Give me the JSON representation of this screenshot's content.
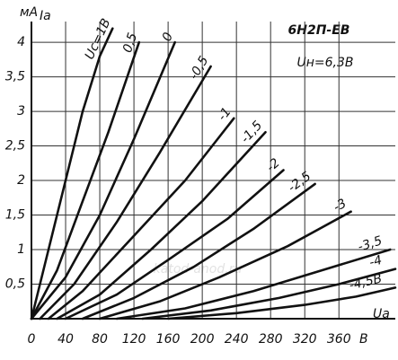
{
  "chart_data": {
    "type": "line",
    "title": "6Н2П-ЕВ",
    "subtitle": "Uн=6,3В",
    "y_unit": "мА",
    "y_label": "Ia",
    "x_label": "Ua",
    "x_unit": "В",
    "watermark": "katod-anod.ru",
    "xlim": [
      0,
      426
    ],
    "ylim": [
      0,
      4.3
    ],
    "xticks": [
      0,
      40,
      80,
      120,
      160,
      200,
      240,
      280,
      320,
      360
    ],
    "yticks": [
      {
        "value": 0.5,
        "label": "0,5"
      },
      1,
      {
        "value": 1.5,
        "label": "1,5"
      },
      2,
      {
        "value": 2.5,
        "label": "2,5"
      },
      3,
      {
        "value": 3.5,
        "label": "3,5"
      },
      4
    ],
    "grid": true,
    "series": [
      {
        "name": "Uc=1В",
        "color": "#111111",
        "x": [
          0,
          20,
          40,
          60,
          80,
          95
        ],
        "values": [
          0,
          1.0,
          2.0,
          3.0,
          3.8,
          4.2
        ]
      },
      {
        "name": "0,5",
        "color": "#111111",
        "x": [
          0,
          30,
          60,
          90,
          126
        ],
        "values": [
          0,
          0.7,
          1.7,
          2.7,
          4.0
        ]
      },
      {
        "name": "0",
        "color": "#111111",
        "x": [
          0,
          40,
          80,
          120,
          168
        ],
        "values": [
          0,
          0.6,
          1.5,
          2.6,
          4.0
        ]
      },
      {
        "name": "-0,5",
        "color": "#111111",
        "x": [
          10,
          50,
          100,
          150,
          210
        ],
        "values": [
          0,
          0.5,
          1.4,
          2.4,
          3.65
        ]
      },
      {
        "name": "-1",
        "color": "#111111",
        "x": [
          20,
          60,
          120,
          180,
          237
        ],
        "values": [
          0,
          0.4,
          1.2,
          2.0,
          2.9
        ]
      },
      {
        "name": "-1,5",
        "color": "#111111",
        "x": [
          30,
          80,
          140,
          200,
          274
        ],
        "values": [
          0,
          0.35,
          1.0,
          1.7,
          2.7
        ]
      },
      {
        "name": "-2",
        "color": "#111111",
        "x": [
          40,
          100,
          160,
          230,
          295
        ],
        "values": [
          0,
          0.35,
          0.85,
          1.45,
          2.15
        ]
      },
      {
        "name": "-2,5",
        "color": "#111111",
        "x": [
          60,
          120,
          190,
          260,
          332
        ],
        "values": [
          0,
          0.3,
          0.75,
          1.3,
          1.95
        ]
      },
      {
        "name": "-3",
        "color": "#111111",
        "x": [
          80,
          150,
          220,
          300,
          374
        ],
        "values": [
          0,
          0.25,
          0.6,
          1.05,
          1.55
        ]
      },
      {
        "name": "-3,5",
        "color": "#111111",
        "x": [
          100,
          180,
          260,
          340,
          420
        ],
        "values": [
          0,
          0.15,
          0.4,
          0.7,
          1.0
        ]
      },
      {
        "name": "-4",
        "color": "#111111",
        "x": [
          130,
          210,
          290,
          360,
          426
        ],
        "values": [
          0,
          0.12,
          0.3,
          0.5,
          0.72
        ]
      },
      {
        "name": "-4,5В",
        "color": "#111111",
        "x": [
          160,
          240,
          320,
          380,
          426
        ],
        "values": [
          0,
          0.08,
          0.2,
          0.32,
          0.45
        ]
      }
    ]
  }
}
